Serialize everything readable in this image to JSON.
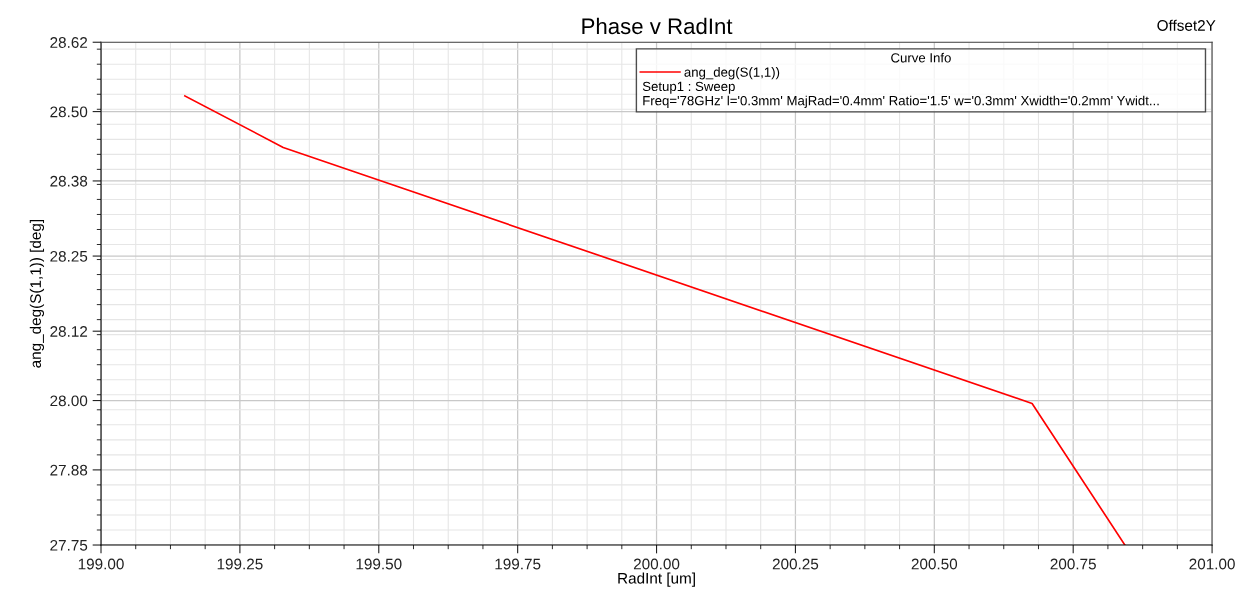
{
  "chart_data": {
    "type": "line",
    "title": "Phase v RadInt",
    "xlabel": "RadInt [um]",
    "ylabel": "ang_deg(S(1,1)) [deg]",
    "legend_title": "Curve Info",
    "annotations": [
      "Offset2Y",
      "Setup1 : Sweep",
      "Freq='78GHz' l='0.3mm' MajRad='0.4mm' Ratio='1.5' w='0.3mm' Xwidth='0.2mm' Ywidt..."
    ],
    "x": [
      199.151,
      199.328,
      200.676,
      200.843
    ],
    "series": [
      {
        "name": "ang_deg(S(1,1))",
        "color": "#ff0000",
        "values": [
          28.527,
          28.438,
          27.995,
          27.75
        ]
      }
    ],
    "xlim": [
      199.0,
      201.0
    ],
    "xticks": [
      {
        "value": 199.0,
        "label": "199.00"
      },
      {
        "value": 199.25,
        "label": "199.25"
      },
      {
        "value": 199.5,
        "label": "199.50"
      },
      {
        "value": 199.75,
        "label": "199.75"
      },
      {
        "value": 200.0,
        "label": "200.00"
      },
      {
        "value": 200.25,
        "label": "200.25"
      },
      {
        "value": 200.5,
        "label": "200.50"
      },
      {
        "value": 200.75,
        "label": "200.75"
      },
      {
        "value": 201.0,
        "label": "201.00"
      }
    ],
    "ylim": [
      27.75,
      28.62
    ],
    "yticks": [
      {
        "value": 27.75,
        "label": "27.75"
      },
      {
        "value": 27.88,
        "label": "27.88"
      },
      {
        "value": 28.0,
        "label": "28.00"
      },
      {
        "value": 28.12,
        "label": "28.12"
      },
      {
        "value": 28.25,
        "label": "28.25"
      },
      {
        "value": 28.38,
        "label": "28.38"
      },
      {
        "value": 28.5,
        "label": "28.50"
      },
      {
        "value": 28.62,
        "label": "28.62"
      }
    ],
    "grid": true,
    "legend": "top right"
  }
}
